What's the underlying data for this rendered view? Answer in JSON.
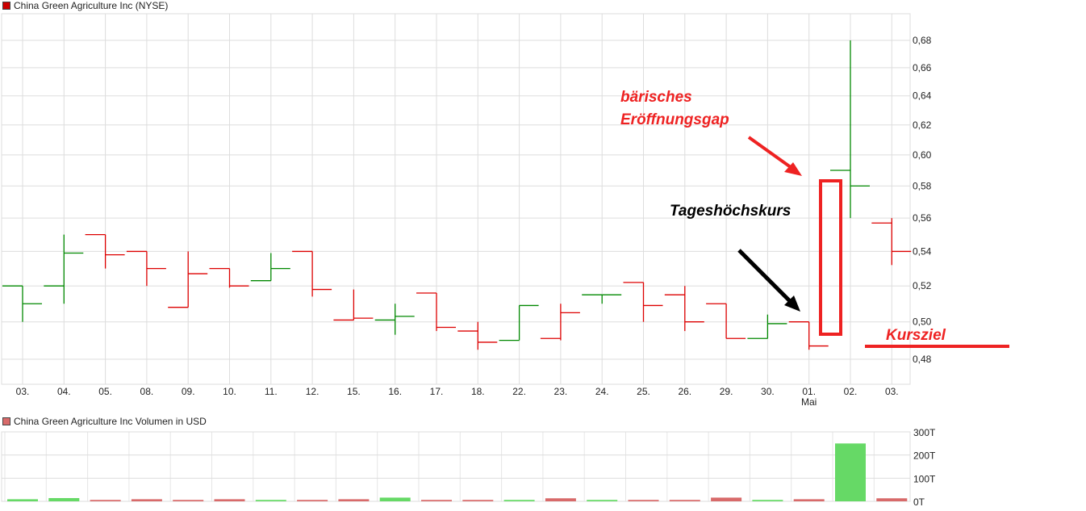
{
  "chart_data": [
    {
      "type": "ohlc",
      "title": "China Green Agriculture Inc (NYSE)",
      "yscale": "log",
      "ylim": [
        0.465,
        0.695
      ],
      "yticks": [
        "0,48",
        "0,50",
        "0,52",
        "0,54",
        "0,56",
        "0,58",
        "0,60",
        "0,62",
        "0,64",
        "0,66",
        "0,68"
      ],
      "ytick_values": [
        0.48,
        0.5,
        0.52,
        0.54,
        0.56,
        0.58,
        0.6,
        0.62,
        0.64,
        0.66,
        0.68
      ],
      "categories": [
        "03.",
        "04.",
        "05.",
        "08.",
        "09.",
        "10.",
        "11.",
        "12.",
        "15.",
        "16.",
        "17.",
        "18.",
        "22.",
        "23.",
        "24.",
        "25.",
        "26.",
        "29.",
        "30.",
        "01.",
        "02.",
        "03."
      ],
      "month_label": {
        "index": 19,
        "text": "Mai"
      },
      "open": [
        0.52,
        0.52,
        0.55,
        0.54,
        0.508,
        0.53,
        0.523,
        0.54,
        0.501,
        0.501,
        0.516,
        0.495,
        0.49,
        0.491,
        0.515,
        0.522,
        0.515,
        0.51,
        0.491,
        0.5,
        0.59,
        0.557
      ],
      "high": [
        0.52,
        0.55,
        0.55,
        0.54,
        0.54,
        0.53,
        0.539,
        0.54,
        0.518,
        0.51,
        0.516,
        0.5,
        0.509,
        0.51,
        0.515,
        0.522,
        0.52,
        0.51,
        0.504,
        0.5,
        0.68,
        0.56
      ],
      "low": [
        0.5,
        0.51,
        0.53,
        0.52,
        0.508,
        0.519,
        0.523,
        0.514,
        0.501,
        0.493,
        0.495,
        0.485,
        0.49,
        0.49,
        0.51,
        0.5,
        0.495,
        0.491,
        0.491,
        0.485,
        0.56,
        0.532
      ],
      "close": [
        0.51,
        0.539,
        0.538,
        0.53,
        0.527,
        0.52,
        0.53,
        0.518,
        0.502,
        0.503,
        0.497,
        0.489,
        0.509,
        0.505,
        0.515,
        0.509,
        0.5,
        0.491,
        0.499,
        0.487,
        0.58,
        0.54
      ],
      "direction": [
        "up",
        "up",
        "down",
        "down",
        "down",
        "down",
        "up",
        "down",
        "down",
        "up",
        "down",
        "down",
        "up",
        "down",
        "up",
        "down",
        "down",
        "down",
        "up",
        "down",
        "up",
        "down"
      ],
      "grid": true
    },
    {
      "type": "bar",
      "title": "China Green Agriculture Inc Volumen in USD",
      "ylim": [
        0,
        300
      ],
      "yticks": [
        "0T",
        "100T",
        "200T",
        "300T"
      ],
      "ytick_values": [
        0,
        100,
        200,
        300
      ],
      "unit": "T",
      "values": [
        9,
        14,
        6,
        9,
        6,
        9,
        6,
        6,
        9,
        16,
        6,
        6,
        6,
        13,
        6,
        6,
        6,
        16,
        6,
        9,
        250,
        13
      ],
      "direction": [
        "up",
        "up",
        "down",
        "down",
        "down",
        "down",
        "up",
        "down",
        "down",
        "up",
        "down",
        "down",
        "up",
        "down",
        "up",
        "down",
        "down",
        "down",
        "up",
        "down",
        "up",
        "down"
      ],
      "grid": true
    }
  ],
  "colors": {
    "up": "#008800",
    "down": "#dd0000",
    "vol_up": "#66d966",
    "vol_down": "#d86a6a",
    "grid": "#dddddd",
    "annotation_red": "#ee2222",
    "annotation_black": "#000000"
  },
  "annotations": {
    "gap_line1": "bärisches",
    "gap_line2": "Eröffnungsgap",
    "high_label": "Tageshöchskurs",
    "target_label": "Kursziel"
  }
}
